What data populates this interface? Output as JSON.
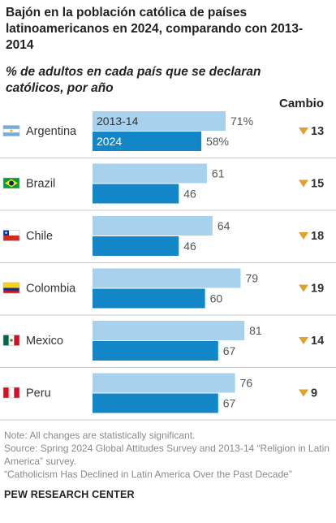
{
  "title": "Bajón en la población católica de países latinoamericanos en 2024, comparando con 2013-2014",
  "subtitle": "% de adultos en cada país que se declaran católicos, por año",
  "change_header": "Cambio",
  "colors": {
    "bar_2013": "#a7d1ec",
    "bar_2024": "#1386c7",
    "change_arrow": "#e0a12e",
    "separator": "#c8c8c8"
  },
  "chart_data": {
    "type": "bar",
    "orientation": "horizontal",
    "categories": [
      "Argentina",
      "Brazil",
      "Chile",
      "Colombia",
      "Mexico",
      "Peru"
    ],
    "series": [
      {
        "name": "2013-14",
        "values": [
          71,
          61,
          64,
          79,
          81,
          76
        ]
      },
      {
        "name": "2024",
        "values": [
          58,
          46,
          46,
          60,
          67,
          67
        ]
      }
    ],
    "value_labels": {
      "2013-14": [
        "71%",
        "61",
        "64",
        "79",
        "81",
        "76"
      ],
      "2024": [
        "58%",
        "46",
        "46",
        "60",
        "67",
        "67"
      ]
    },
    "change": [
      13,
      15,
      18,
      19,
      14,
      9
    ],
    "change_direction": "down",
    "xlim": [
      0,
      100
    ],
    "flags": [
      "argentina-flag",
      "brazil-flag",
      "chile-flag",
      "colombia-flag",
      "mexico-flag",
      "peru-flag"
    ]
  },
  "notes": [
    "Note: All changes are statistically significant.",
    "Source: Spring 2024 Global Attitudes Survey and 2013-14 “Religion in Latin America” survey.",
    "“Catholicism Has Declined in Latin America Over the Past Decade”"
  ],
  "brand": "PEW RESEARCH CENTER"
}
